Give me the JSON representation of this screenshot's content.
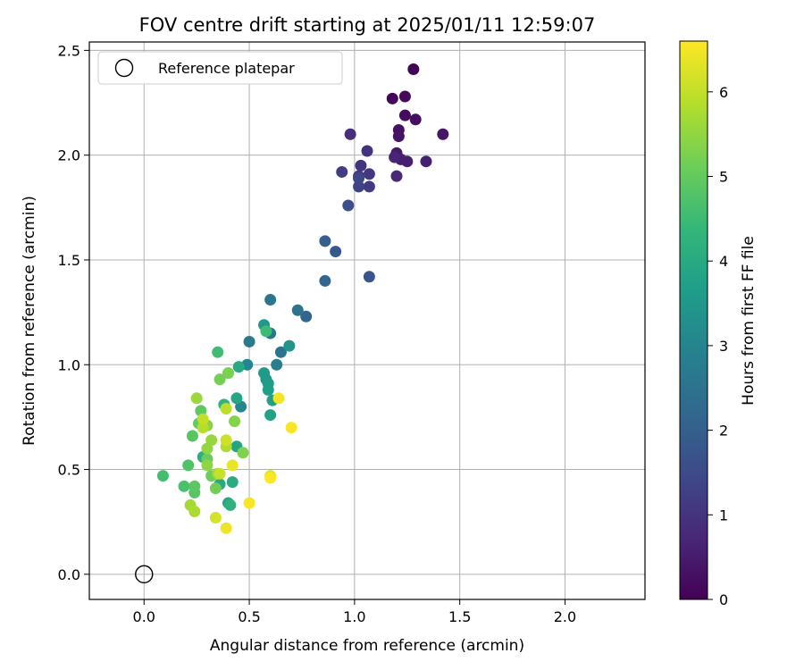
{
  "chart_data": {
    "type": "scatter",
    "title": "FOV centre drift starting at 2025/01/11 12:59:07",
    "xlabel": "Angular distance from reference (arcmin)",
    "ylabel": "Rotation from reference (arcmin)",
    "xlim": [
      -0.26,
      2.38
    ],
    "ylim": [
      -0.12,
      2.54
    ],
    "xticks": [
      "0.0",
      "0.5",
      "1.0",
      "1.5",
      "2.0"
    ],
    "yticks": [
      "0.0",
      "0.5",
      "1.0",
      "1.5",
      "2.0",
      "2.5"
    ],
    "grid": true,
    "legend": {
      "position": "top-left",
      "entries": [
        "Reference platepar"
      ]
    },
    "reference_point": {
      "x": 0.0,
      "y": 0.0
    },
    "colorbar": {
      "label": "Hours from first FF file",
      "min": 0,
      "max": 6.6,
      "ticks": [
        "0",
        "1",
        "2",
        "3",
        "4",
        "5",
        "6"
      ],
      "colormap": [
        "#440154",
        "#482878",
        "#3e4989",
        "#31688e",
        "#26828e",
        "#1f9e89",
        "#35b779",
        "#6ece58",
        "#b5de2b",
        "#fde725"
      ]
    },
    "points": [
      {
        "x": 1.28,
        "y": 2.41,
        "h": 0.05
      },
      {
        "x": 1.18,
        "y": 2.27,
        "h": 0.1
      },
      {
        "x": 1.24,
        "y": 2.28,
        "h": 0.15
      },
      {
        "x": 1.24,
        "y": 2.19,
        "h": 0.2
      },
      {
        "x": 1.29,
        "y": 2.17,
        "h": 0.25
      },
      {
        "x": 1.21,
        "y": 2.12,
        "h": 0.3
      },
      {
        "x": 1.21,
        "y": 2.09,
        "h": 0.35
      },
      {
        "x": 1.42,
        "y": 2.1,
        "h": 0.4
      },
      {
        "x": 1.2,
        "y": 2.01,
        "h": 0.45
      },
      {
        "x": 1.22,
        "y": 1.98,
        "h": 0.5
      },
      {
        "x": 1.25,
        "y": 1.97,
        "h": 0.55
      },
      {
        "x": 1.34,
        "y": 1.97,
        "h": 0.6
      },
      {
        "x": 1.19,
        "y": 1.99,
        "h": 0.7
      },
      {
        "x": 1.2,
        "y": 1.9,
        "h": 0.75
      },
      {
        "x": 0.98,
        "y": 2.1,
        "h": 0.9
      },
      {
        "x": 1.06,
        "y": 2.02,
        "h": 0.95
      },
      {
        "x": 1.03,
        "y": 1.95,
        "h": 1.0
      },
      {
        "x": 1.07,
        "y": 1.91,
        "h": 1.05
      },
      {
        "x": 1.02,
        "y": 1.9,
        "h": 1.1
      },
      {
        "x": 1.07,
        "y": 1.85,
        "h": 1.15
      },
      {
        "x": 0.94,
        "y": 1.92,
        "h": 1.2
      },
      {
        "x": 1.02,
        "y": 1.85,
        "h": 1.3
      },
      {
        "x": 1.02,
        "y": 1.89,
        "h": 1.4
      },
      {
        "x": 0.97,
        "y": 1.76,
        "h": 1.6
      },
      {
        "x": 1.07,
        "y": 1.42,
        "h": 1.75
      },
      {
        "x": 0.91,
        "y": 1.54,
        "h": 1.85
      },
      {
        "x": 0.86,
        "y": 1.59,
        "h": 2.0
      },
      {
        "x": 0.77,
        "y": 1.23,
        "h": 2.1
      },
      {
        "x": 0.86,
        "y": 1.4,
        "h": 2.15
      },
      {
        "x": 0.73,
        "y": 1.26,
        "h": 2.5
      },
      {
        "x": 0.6,
        "y": 1.31,
        "h": 2.6
      },
      {
        "x": 0.65,
        "y": 1.06,
        "h": 2.55
      },
      {
        "x": 0.5,
        "y": 1.11,
        "h": 2.7
      },
      {
        "x": 0.6,
        "y": 1.15,
        "h": 2.65
      },
      {
        "x": 0.63,
        "y": 1.0,
        "h": 2.8
      },
      {
        "x": 0.49,
        "y": 1.0,
        "h": 3.0
      },
      {
        "x": 0.46,
        "y": 0.8,
        "h": 3.05
      },
      {
        "x": 0.69,
        "y": 1.09,
        "h": 3.4
      },
      {
        "x": 0.57,
        "y": 1.19,
        "h": 3.5
      },
      {
        "x": 0.57,
        "y": 0.96,
        "h": 3.55
      },
      {
        "x": 0.58,
        "y": 0.93,
        "h": 3.6
      },
      {
        "x": 0.59,
        "y": 0.91,
        "h": 3.65
      },
      {
        "x": 0.59,
        "y": 0.88,
        "h": 3.7
      },
      {
        "x": 0.61,
        "y": 0.83,
        "h": 3.75
      },
      {
        "x": 0.6,
        "y": 0.76,
        "h": 3.8
      },
      {
        "x": 0.44,
        "y": 0.61,
        "h": 3.85
      },
      {
        "x": 0.44,
        "y": 0.84,
        "h": 3.9
      },
      {
        "x": 0.45,
        "y": 0.99,
        "h": 3.95
      },
      {
        "x": 0.4,
        "y": 0.34,
        "h": 3.9
      },
      {
        "x": 0.36,
        "y": 0.43,
        "h": 4.0
      },
      {
        "x": 0.42,
        "y": 0.44,
        "h": 4.05
      },
      {
        "x": 0.28,
        "y": 0.56,
        "h": 4.1
      },
      {
        "x": 0.41,
        "y": 0.33,
        "h": 4.2
      },
      {
        "x": 0.38,
        "y": 0.81,
        "h": 4.3
      },
      {
        "x": 0.58,
        "y": 1.16,
        "h": 4.5
      },
      {
        "x": 0.35,
        "y": 1.06,
        "h": 4.55
      },
      {
        "x": 0.09,
        "y": 0.47,
        "h": 4.6
      },
      {
        "x": 0.19,
        "y": 0.42,
        "h": 4.7
      },
      {
        "x": 0.21,
        "y": 0.52,
        "h": 4.75
      },
      {
        "x": 0.24,
        "y": 0.39,
        "h": 4.8
      },
      {
        "x": 0.23,
        "y": 0.66,
        "h": 4.85
      },
      {
        "x": 0.24,
        "y": 0.42,
        "h": 4.9
      },
      {
        "x": 0.27,
        "y": 0.78,
        "h": 4.95
      },
      {
        "x": 0.26,
        "y": 0.72,
        "h": 5.0
      },
      {
        "x": 0.3,
        "y": 0.55,
        "h": 5.05
      },
      {
        "x": 0.32,
        "y": 0.47,
        "h": 5.1
      },
      {
        "x": 0.34,
        "y": 0.41,
        "h": 5.15
      },
      {
        "x": 0.36,
        "y": 0.93,
        "h": 5.2
      },
      {
        "x": 0.4,
        "y": 0.96,
        "h": 5.25
      },
      {
        "x": 0.47,
        "y": 0.58,
        "h": 5.3
      },
      {
        "x": 0.43,
        "y": 0.73,
        "h": 5.35
      },
      {
        "x": 0.3,
        "y": 0.71,
        "h": 5.4
      },
      {
        "x": 0.3,
        "y": 0.52,
        "h": 5.45
      },
      {
        "x": 0.3,
        "y": 0.6,
        "h": 5.5
      },
      {
        "x": 0.32,
        "y": 0.64,
        "h": 5.55
      },
      {
        "x": 0.25,
        "y": 0.84,
        "h": 5.6
      },
      {
        "x": 0.35,
        "y": 0.48,
        "h": 5.65
      },
      {
        "x": 0.22,
        "y": 0.33,
        "h": 5.7
      },
      {
        "x": 0.24,
        "y": 0.3,
        "h": 5.75
      },
      {
        "x": 0.39,
        "y": 0.61,
        "h": 5.8
      },
      {
        "x": 0.28,
        "y": 0.7,
        "h": 5.85
      },
      {
        "x": 0.39,
        "y": 0.79,
        "h": 5.95
      },
      {
        "x": 0.28,
        "y": 0.74,
        "h": 6.0
      },
      {
        "x": 0.36,
        "y": 0.48,
        "h": 6.05
      },
      {
        "x": 0.39,
        "y": 0.64,
        "h": 6.1
      },
      {
        "x": 0.34,
        "y": 0.27,
        "h": 6.2
      },
      {
        "x": 0.6,
        "y": 0.47,
        "h": 6.3
      },
      {
        "x": 0.42,
        "y": 0.52,
        "h": 6.4
      },
      {
        "x": 0.39,
        "y": 0.22,
        "h": 6.45
      },
      {
        "x": 0.64,
        "y": 0.84,
        "h": 6.5
      },
      {
        "x": 0.7,
        "y": 0.7,
        "h": 6.55
      },
      {
        "x": 0.5,
        "y": 0.34,
        "h": 6.55
      },
      {
        "x": 0.6,
        "y": 0.46,
        "h": 6.6
      }
    ]
  }
}
